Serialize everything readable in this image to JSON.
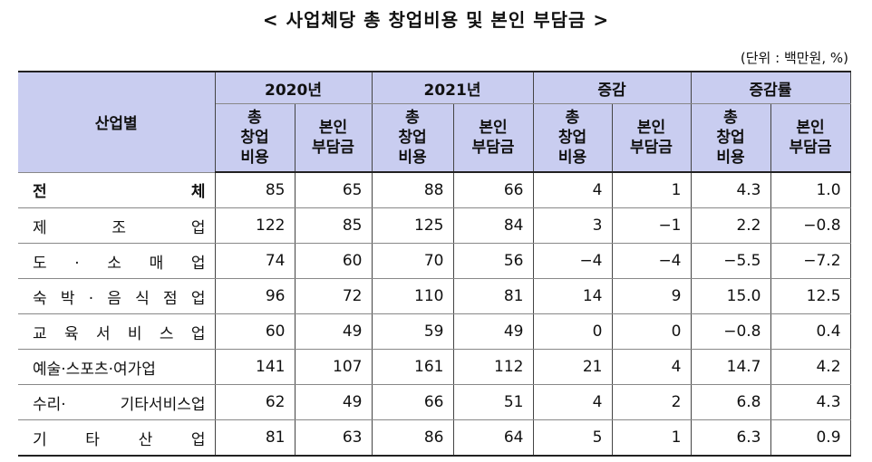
{
  "title": "< 사업체당 총 창업비용 및 본인 부담금 >",
  "unit": "(단위 : 백만원, %)",
  "table": {
    "header_groups": [
      "산업별",
      "2020년",
      "2021년",
      "증감",
      "증감률"
    ],
    "subheaders": [
      "총\n창업\n비용",
      "본인\n부담금",
      "총\n창업\n비용",
      "본인\n부담금",
      "총\n창업\n비용",
      "본인\n부담금",
      "총\n창업\n비용",
      "본인\n부담금"
    ],
    "rows": [
      [
        "전 체",
        "85",
        "65",
        "88",
        "66",
        "4",
        "1",
        "4.3",
        "1.0"
      ],
      [
        "제 조 업",
        "122",
        "85",
        "125",
        "84",
        "3",
        "−1",
        "2.2",
        "−0.8"
      ],
      [
        "도 · 소 매 업",
        "74",
        "60",
        "70",
        "56",
        "−4",
        "−4",
        "−5.5",
        "−7.2"
      ],
      [
        "숙 박 · 음 식 점 업",
        "96",
        "72",
        "110",
        "81",
        "14",
        "9",
        "15.0",
        "12.5"
      ],
      [
        "교 육 서 비 스 업",
        "60",
        "49",
        "59",
        "49",
        "0",
        "0",
        "−0.8",
        "0.4"
      ],
      [
        "예술·스포츠·여가업",
        "141",
        "107",
        "161",
        "112",
        "21",
        "4",
        "14.7",
        "4.2"
      ],
      [
        "수리· 기타서비스업",
        "62",
        "49",
        "66",
        "51",
        "4",
        "2",
        "6.8",
        "4.3"
      ],
      [
        "기 타 산 업",
        "81",
        "63",
        "86",
        "64",
        "5",
        "1",
        "6.3",
        "0.9"
      ]
    ]
  }
}
